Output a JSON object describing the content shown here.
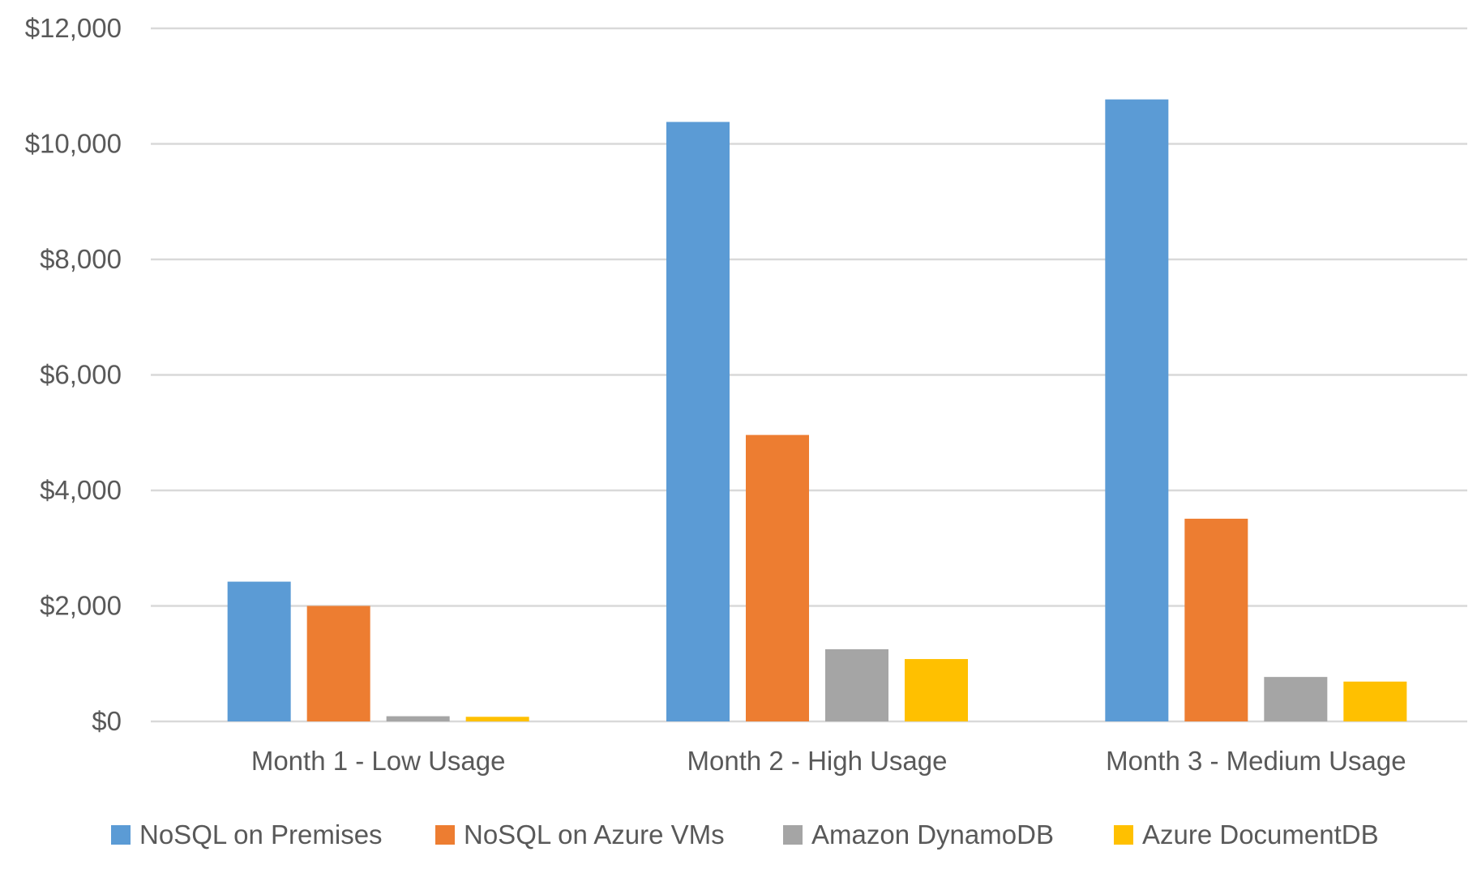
{
  "chart_data": {
    "type": "bar",
    "title": "",
    "xlabel": "",
    "ylabel": "",
    "categories": [
      "Month 1 - Low Usage",
      "Month 2 - High Usage",
      "Month 3 - Medium Usage"
    ],
    "series": [
      {
        "name": "NoSQL on Premises",
        "color": "#5B9BD5",
        "values": [
          2420,
          10380,
          10770
        ]
      },
      {
        "name": "NoSQL on Azure VMs",
        "color": "#ED7D31",
        "values": [
          2000,
          4960,
          3510
        ]
      },
      {
        "name": "Amazon DynamoDB",
        "color": "#A5A5A5",
        "values": [
          90,
          1250,
          770
        ]
      },
      {
        "name": "Azure DocumentDB",
        "color": "#FFC000",
        "values": [
          80,
          1080,
          690
        ]
      }
    ],
    "ylim": [
      0,
      12000
    ],
    "yticks": [
      0,
      2000,
      4000,
      6000,
      8000,
      10000,
      12000
    ],
    "ytick_labels": [
      "$0",
      "$2,000",
      "$4,000",
      "$6,000",
      "$8,000",
      "$10,000",
      "$12,000"
    ],
    "grid": true,
    "legend_position": "bottom"
  }
}
